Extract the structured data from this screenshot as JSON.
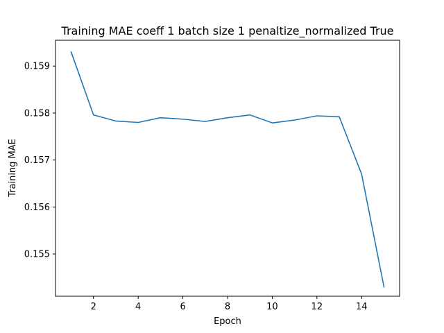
{
  "chart_data": {
    "type": "line",
    "title": "Training MAE coeff 1 batch size 1 penaltize_normalized True",
    "xlabel": "Epoch",
    "ylabel": "Training MAE",
    "x": [
      1,
      2,
      3,
      4,
      5,
      6,
      7,
      8,
      9,
      10,
      11,
      12,
      13,
      14,
      15
    ],
    "series": [
      {
        "values": [
          0.1593,
          0.15796,
          0.15783,
          0.1578,
          0.1579,
          0.15787,
          0.15782,
          0.1579,
          0.15796,
          0.15779,
          0.15785,
          0.15794,
          0.15792,
          0.1567,
          0.1543
        ],
        "color": "#1f77b4"
      }
    ],
    "xlim": [
      0.3,
      15.7
    ],
    "ylim": [
      0.1541,
      0.15955
    ],
    "xticks": [
      2,
      4,
      6,
      8,
      10,
      12,
      14
    ],
    "xtick_labels": [
      "2",
      "4",
      "6",
      "8",
      "10",
      "12",
      "14"
    ],
    "yticks": [
      0.155,
      0.156,
      0.157,
      0.158,
      0.159
    ],
    "ytick_labels": [
      "0.155",
      "0.156",
      "0.157",
      "0.158",
      "0.159"
    ],
    "grid": false,
    "legend": false
  }
}
